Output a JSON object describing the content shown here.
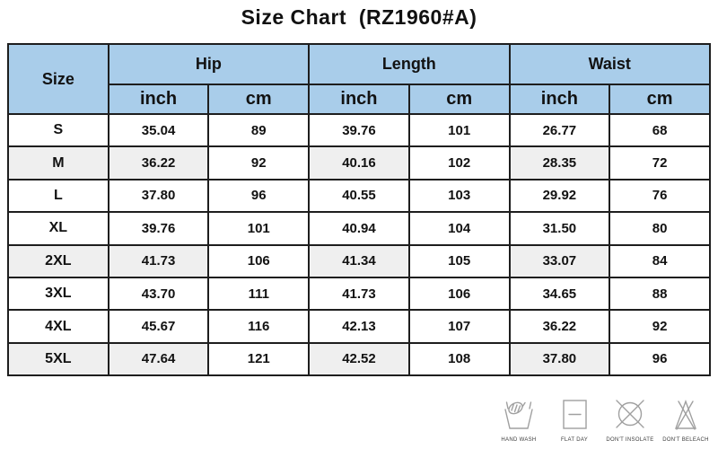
{
  "title": "Size Chart  (RZ1960#A)",
  "table": {
    "size_header": "Size",
    "groups": [
      {
        "label": "Hip"
      },
      {
        "label": "Length"
      },
      {
        "label": "Waist"
      }
    ],
    "unit_headers": [
      "inch",
      "cm"
    ],
    "rows": [
      {
        "size": "S",
        "hip_inch": "35.04",
        "hip_cm": "89",
        "length_inch": "39.76",
        "length_cm": "101",
        "waist_inch": "26.77",
        "waist_cm": "68",
        "shaded": false
      },
      {
        "size": "M",
        "hip_inch": "36.22",
        "hip_cm": "92",
        "length_inch": "40.16",
        "length_cm": "102",
        "waist_inch": "28.35",
        "waist_cm": "72",
        "shaded": true
      },
      {
        "size": "L",
        "hip_inch": "37.80",
        "hip_cm": "96",
        "length_inch": "40.55",
        "length_cm": "103",
        "waist_inch": "29.92",
        "waist_cm": "76",
        "shaded": false
      },
      {
        "size": "XL",
        "hip_inch": "39.76",
        "hip_cm": "101",
        "length_inch": "40.94",
        "length_cm": "104",
        "waist_inch": "31.50",
        "waist_cm": "80",
        "shaded": false
      },
      {
        "size": "2XL",
        "hip_inch": "41.73",
        "hip_cm": "106",
        "length_inch": "41.34",
        "length_cm": "105",
        "waist_inch": "33.07",
        "waist_cm": "84",
        "shaded": true
      },
      {
        "size": "3XL",
        "hip_inch": "43.70",
        "hip_cm": "111",
        "length_inch": "41.73",
        "length_cm": "106",
        "waist_inch": "34.65",
        "waist_cm": "88",
        "shaded": false
      },
      {
        "size": "4XL",
        "hip_inch": "45.67",
        "hip_cm": "116",
        "length_inch": "42.13",
        "length_cm": "107",
        "waist_inch": "36.22",
        "waist_cm": "92",
        "shaded": false
      },
      {
        "size": "5XL",
        "hip_inch": "47.64",
        "hip_cm": "121",
        "length_inch": "42.52",
        "length_cm": "108",
        "waist_inch": "37.80",
        "waist_cm": "96",
        "shaded": true
      }
    ]
  },
  "care_icons": [
    {
      "name": "hand-wash-icon",
      "label": "HAND WASH"
    },
    {
      "name": "flat-day-icon",
      "label": "FLAT DAY"
    },
    {
      "name": "dont-insolate-icon",
      "label": "DON'T INSOLATE"
    },
    {
      "name": "dont-beleach-icon",
      "label": "DON'T BELEACH"
    }
  ],
  "colors": {
    "header_bg": "#a9cdea",
    "shaded_cell_bg": "#efefef",
    "border": "#1e1e1e",
    "icon_stroke": "#a0a0a0",
    "title_color": "#111111"
  },
  "chart_data": {
    "type": "table",
    "title": "Size Chart  (RZ1960#A)",
    "column_groups": [
      "Size",
      "Hip",
      "Hip",
      "Length",
      "Length",
      "Waist",
      "Waist"
    ],
    "columns": [
      "Size",
      "Hip inch",
      "Hip cm",
      "Length inch",
      "Length cm",
      "Waist inch",
      "Waist cm"
    ],
    "rows": [
      [
        "S",
        35.04,
        89,
        39.76,
        101,
        26.77,
        68
      ],
      [
        "M",
        36.22,
        92,
        40.16,
        102,
        28.35,
        72
      ],
      [
        "L",
        37.8,
        96,
        40.55,
        103,
        29.92,
        76
      ],
      [
        "XL",
        39.76,
        101,
        40.94,
        104,
        31.5,
        80
      ],
      [
        "2XL",
        41.73,
        106,
        41.34,
        105,
        33.07,
        84
      ],
      [
        "3XL",
        43.7,
        111,
        41.73,
        106,
        34.65,
        88
      ],
      [
        "4XL",
        45.67,
        116,
        42.13,
        107,
        36.22,
        92
      ],
      [
        "5XL",
        47.64,
        121,
        42.52,
        108,
        37.8,
        96
      ]
    ]
  }
}
